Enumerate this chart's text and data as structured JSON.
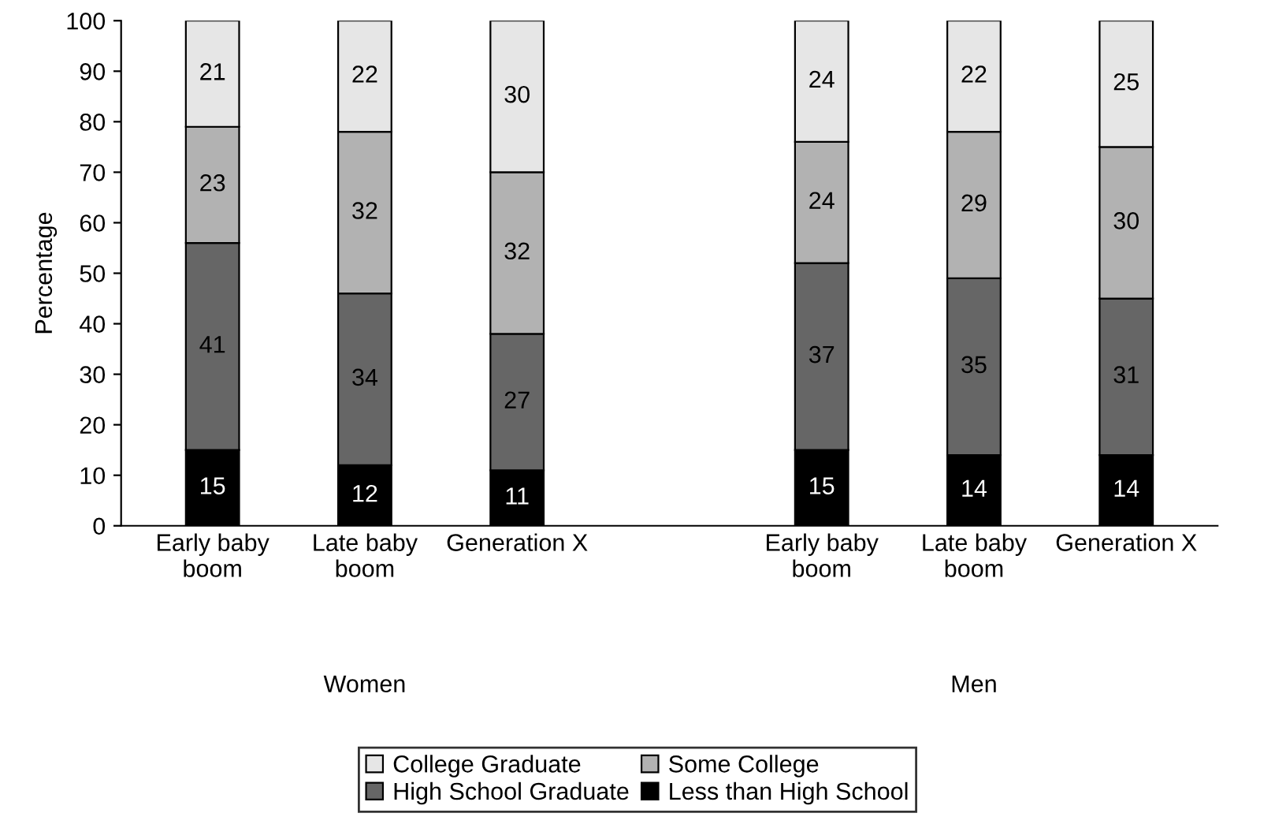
{
  "chart_data": {
    "type": "bar",
    "stacked": true,
    "ylabel": "Percentage",
    "categories": [
      "Early baby\nboom",
      "Late baby\nboom",
      "Generation X",
      null,
      "Early baby\nboom",
      "Late baby\nboom",
      "Generation X"
    ],
    "series": [
      {
        "name": "Less than High School",
        "color": "#000000",
        "values": [
          15,
          12,
          11,
          null,
          15,
          14,
          14
        ]
      },
      {
        "name": "High School Graduate",
        "color": "#666666",
        "values": [
          41,
          34,
          27,
          null,
          37,
          35,
          31
        ]
      },
      {
        "name": "Some College",
        "color": "#b2b2b2",
        "values": [
          23,
          32,
          32,
          null,
          24,
          29,
          30
        ]
      },
      {
        "name": "College Graduate",
        "color": "#e6e6e6",
        "values": [
          21,
          22,
          30,
          null,
          24,
          22,
          25
        ]
      }
    ],
    "annotations": [
      "Women",
      "Men"
    ],
    "ylim": [
      0,
      100
    ],
    "yticks": [
      0,
      10,
      20,
      30,
      40,
      50,
      60,
      70,
      80,
      90,
      100
    ],
    "grid": false,
    "legend": "bottom",
    "data_labels": true
  }
}
